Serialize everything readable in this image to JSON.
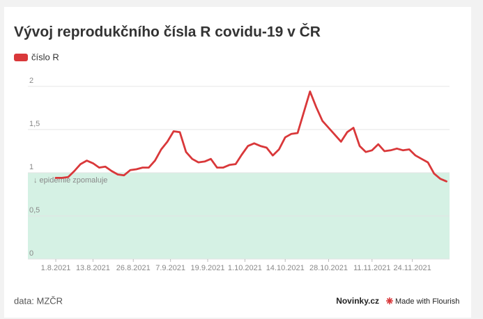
{
  "chart_data": {
    "type": "line",
    "title": "Vývoj reprodukčního čísla R covidu-19 v ČR",
    "x": [
      "2021-08-01",
      "2021-08-03",
      "2021-08-05",
      "2021-08-07",
      "2021-08-09",
      "2021-08-11",
      "2021-08-13",
      "2021-08-15",
      "2021-08-17",
      "2021-08-19",
      "2021-08-21",
      "2021-08-23",
      "2021-08-25",
      "2021-08-27",
      "2021-08-29",
      "2021-08-31",
      "2021-09-02",
      "2021-09-04",
      "2021-09-06",
      "2021-09-08",
      "2021-09-10",
      "2021-09-12",
      "2021-09-14",
      "2021-09-16",
      "2021-09-18",
      "2021-09-20",
      "2021-09-22",
      "2021-09-24",
      "2021-09-26",
      "2021-09-28",
      "2021-09-30",
      "2021-10-02",
      "2021-10-04",
      "2021-10-06",
      "2021-10-08",
      "2021-10-10",
      "2021-10-12",
      "2021-10-14",
      "2021-10-16",
      "2021-10-18",
      "2021-10-20",
      "2021-10-22",
      "2021-10-24",
      "2021-10-26",
      "2021-10-28",
      "2021-10-30",
      "2021-11-01",
      "2021-11-03",
      "2021-11-05",
      "2021-11-07",
      "2021-11-09",
      "2021-11-11",
      "2021-11-13",
      "2021-11-15",
      "2021-11-17",
      "2021-11-19",
      "2021-11-21",
      "2021-11-23",
      "2021-11-25",
      "2021-11-27",
      "2021-11-29",
      "2021-12-01",
      "2021-12-03",
      "2021-12-05"
    ],
    "series": [
      {
        "name": "číslo R",
        "color": "#d9383a",
        "values": [
          0.94,
          0.94,
          0.95,
          1.02,
          1.1,
          1.14,
          1.11,
          1.06,
          1.07,
          1.02,
          0.98,
          0.97,
          1.03,
          1.04,
          1.06,
          1.06,
          1.14,
          1.27,
          1.36,
          1.48,
          1.47,
          1.24,
          1.16,
          1.12,
          1.13,
          1.16,
          1.06,
          1.06,
          1.09,
          1.1,
          1.21,
          1.31,
          1.34,
          1.31,
          1.29,
          1.2,
          1.27,
          1.41,
          1.45,
          1.46,
          1.7,
          1.94,
          1.76,
          1.6,
          1.52,
          1.44,
          1.36,
          1.47,
          1.52,
          1.31,
          1.24,
          1.26,
          1.33,
          1.25,
          1.26,
          1.28,
          1.26,
          1.27,
          1.2,
          1.16,
          1.12,
          0.99,
          0.93,
          0.9
        ]
      }
    ],
    "xlim": [
      "2021-07-23",
      "2021-12-06"
    ],
    "xticks": [
      {
        "value": "2021-08-01",
        "label": "1.8.2021"
      },
      {
        "value": "2021-08-13",
        "label": "13.8.2021"
      },
      {
        "value": "2021-08-26",
        "label": "26.8.2021"
      },
      {
        "value": "2021-09-07",
        "label": "7.9.2021"
      },
      {
        "value": "2021-09-19",
        "label": "19.9.2021"
      },
      {
        "value": "2021-10-01",
        "label": "1.10.2021"
      },
      {
        "value": "2021-10-14",
        "label": "14.10.2021"
      },
      {
        "value": "2021-10-28",
        "label": "28.10.2021"
      },
      {
        "value": "2021-11-11",
        "label": "11.11.2021"
      },
      {
        "value": "2021-11-24",
        "label": "24.11.2021"
      }
    ],
    "ylim": [
      0,
      2
    ],
    "yticks": [
      0,
      {
        "value": 0.5,
        "label": "0,5"
      },
      1,
      {
        "value": 1.5,
        "label": "1,5"
      },
      2
    ],
    "grid": true,
    "legend": "top-left",
    "shaded_band": {
      "range": [
        0,
        1
      ],
      "color": "#d5f1e4",
      "label": "↓ epidemie zpomaluje"
    },
    "source": "data: MZČR",
    "brand": "Novinky.cz",
    "credit": "Made with Flourish"
  }
}
